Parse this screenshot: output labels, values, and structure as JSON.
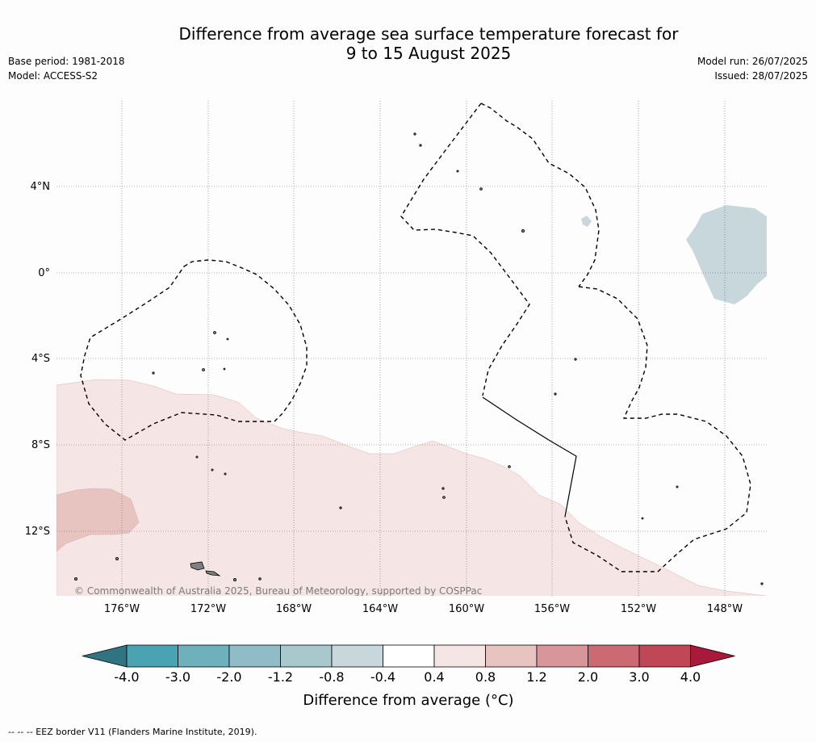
{
  "title_line1": "Difference from average sea surface temperature forecast for",
  "title_line2": "9 to 15 August 2025",
  "base_period": "Base period: 1981-2018",
  "model": "Model: ACCESS-S2",
  "model_run": "Model run: 26/07/2025",
  "issued": "Issued: 28/07/2025",
  "credit": "© Commonwealth of Australia 2025, Bureau of Meteorology, supported by COSPPac",
  "footer": "--  --  -- EEZ border V11 (Flanders Marine Institute, 2019).",
  "map": {
    "lon_labels": [
      "176°W",
      "172°W",
      "168°W",
      "164°W",
      "160°W",
      "156°W",
      "152°W",
      "148°W"
    ],
    "lat_labels": [
      "4°N",
      "0°",
      "4°S",
      "8°S",
      "12°S"
    ]
  },
  "legend": {
    "title": "Difference from average (°C)",
    "tick_labels": [
      "-4.0",
      "-3.0",
      "-2.0",
      "-1.2",
      "-0.8",
      "-0.4",
      "0.4",
      "0.8",
      "1.2",
      "2.0",
      "3.0",
      "4.0"
    ],
    "colors": [
      "#2f7480",
      "#4aa3b3",
      "#6eb0bc",
      "#8fbcc6",
      "#a8c8ce",
      "#c7d7dc",
      "#ffffff",
      "#f5e6e5",
      "#e7c4c0",
      "#d8959a",
      "#cb6a73",
      "#c04756",
      "#a9193a"
    ]
  },
  "colors": {
    "warm_fill": "#f5e6e5",
    "warm_fill_2": "#e7c4c0",
    "cool_fill": "#c7d7dc"
  }
}
